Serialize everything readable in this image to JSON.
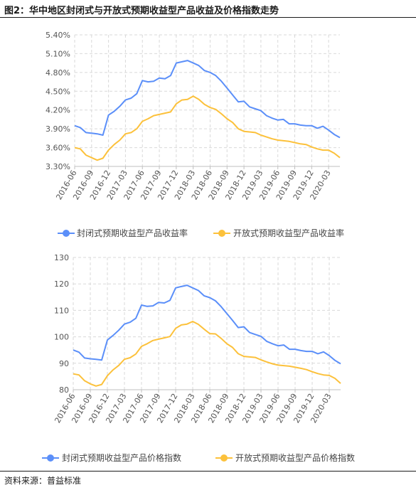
{
  "figure": {
    "title": "图2：华中地区封闭式与开放式预期收益型产品收益及价格指数走势",
    "source": "资料来源：普益标准"
  },
  "colors": {
    "closed": "#5b8ff9",
    "open": "#fcc13b",
    "grid": "#d9d9d9",
    "axis": "#bfbfbf",
    "text": "#555555"
  },
  "chart_data": [
    {
      "type": "line",
      "title": "",
      "xlabel": "",
      "ylabel": "",
      "ylim": [
        3.3,
        5.4
      ],
      "yticks": [
        "3.30%",
        "3.60%",
        "3.90%",
        "4.20%",
        "4.50%",
        "4.80%",
        "5.10%",
        "5.40%"
      ],
      "ytick_values": [
        3.3,
        3.6,
        3.9,
        4.2,
        4.5,
        4.8,
        5.1,
        5.4
      ],
      "grid": true,
      "legend_position": "bottom",
      "categories": [
        "2016-06",
        "2016-07",
        "2016-08",
        "2016-09",
        "2016-10",
        "2016-11",
        "2016-12",
        "2017-01",
        "2017-02",
        "2017-03",
        "2017-04",
        "2017-05",
        "2017-06",
        "2017-07",
        "2017-08",
        "2017-09",
        "2017-10",
        "2017-11",
        "2017-12",
        "2018-01",
        "2018-02",
        "2018-03",
        "2018-04",
        "2018-05",
        "2018-06",
        "2018-07",
        "2018-08",
        "2018-09",
        "2018-10",
        "2018-11",
        "2018-12",
        "2019-01",
        "2019-02",
        "2019-03",
        "2019-04",
        "2019-05",
        "2019-06",
        "2019-07",
        "2019-08",
        "2019-09",
        "2019-10",
        "2019-11",
        "2019-12",
        "2020-01",
        "2020-02",
        "2020-03",
        "2020-04",
        "2020-05"
      ],
      "tick_labels": [
        "2016-06",
        "2016-09",
        "2016-12",
        "2017-03",
        "2017-06",
        "2017-09",
        "2017-12",
        "2018-03",
        "2018-06",
        "2018-09",
        "2018-12",
        "2019-03",
        "2019-06",
        "2019-09",
        "2019-12",
        "2020-03"
      ],
      "series": [
        {
          "name": "封闭式预期收益型产品收益率",
          "color_key": "closed",
          "values": [
            3.95,
            3.92,
            3.84,
            3.83,
            3.82,
            3.8,
            4.12,
            4.18,
            4.26,
            4.36,
            4.39,
            4.46,
            4.67,
            4.65,
            4.66,
            4.71,
            4.7,
            4.75,
            4.95,
            4.97,
            4.99,
            4.95,
            4.91,
            4.83,
            4.8,
            4.75,
            4.66,
            4.55,
            4.44,
            4.33,
            4.34,
            4.25,
            4.22,
            4.19,
            4.11,
            4.07,
            4.04,
            4.05,
            3.98,
            3.98,
            3.96,
            3.95,
            3.95,
            3.91,
            3.94,
            3.88,
            3.81,
            3.76
          ]
        },
        {
          "name": "开放式预期收益型产品收益率",
          "color_key": "open",
          "values": [
            3.6,
            3.58,
            3.48,
            3.44,
            3.4,
            3.43,
            3.56,
            3.65,
            3.72,
            3.82,
            3.84,
            3.9,
            4.02,
            4.06,
            4.11,
            4.13,
            4.15,
            4.17,
            4.3,
            4.36,
            4.37,
            4.42,
            4.37,
            4.29,
            4.24,
            4.21,
            4.14,
            4.06,
            4.0,
            3.9,
            3.86,
            3.85,
            3.84,
            3.8,
            3.77,
            3.74,
            3.72,
            3.71,
            3.7,
            3.68,
            3.66,
            3.65,
            3.61,
            3.58,
            3.56,
            3.56,
            3.51,
            3.44
          ]
        }
      ]
    },
    {
      "type": "line",
      "title": "",
      "xlabel": "",
      "ylabel": "",
      "ylim": [
        80,
        130
      ],
      "yticks": [
        "80",
        "90",
        "100",
        "110",
        "120",
        "130"
      ],
      "ytick_values": [
        80,
        90,
        100,
        110,
        120,
        130
      ],
      "grid": true,
      "legend_position": "bottom",
      "categories": [
        "2016-06",
        "2016-07",
        "2016-08",
        "2016-09",
        "2016-10",
        "2016-11",
        "2016-12",
        "2017-01",
        "2017-02",
        "2017-03",
        "2017-04",
        "2017-05",
        "2017-06",
        "2017-07",
        "2017-08",
        "2017-09",
        "2017-10",
        "2017-11",
        "2017-12",
        "2018-01",
        "2018-02",
        "2018-03",
        "2018-04",
        "2018-05",
        "2018-06",
        "2018-07",
        "2018-08",
        "2018-09",
        "2018-10",
        "2018-11",
        "2018-12",
        "2019-01",
        "2019-02",
        "2019-03",
        "2019-04",
        "2019-05",
        "2019-06",
        "2019-07",
        "2019-08",
        "2019-09",
        "2019-10",
        "2019-11",
        "2019-12",
        "2020-01",
        "2020-02",
        "2020-03",
        "2020-04",
        "2020-05"
      ],
      "tick_labels": [
        "2016-06",
        "2016-09",
        "2016-12",
        "2017-03",
        "2017-06",
        "2017-09",
        "2017-12",
        "2018-03",
        "2018-06",
        "2018-09",
        "2018-12",
        "2019-03",
        "2019-06",
        "2019-09",
        "2019-12",
        "2020-03"
      ],
      "series": [
        {
          "name": "封闭式预期收益型产品价格指数",
          "color_key": "closed",
          "values": [
            95.0,
            94.2,
            92.0,
            91.7,
            91.5,
            91.2,
            98.8,
            100.5,
            102.5,
            104.8,
            105.5,
            107.0,
            112.0,
            111.5,
            111.7,
            113.0,
            112.8,
            113.8,
            118.5,
            119.0,
            119.5,
            118.5,
            117.5,
            115.5,
            114.8,
            113.6,
            111.4,
            108.8,
            106.2,
            103.5,
            103.8,
            101.6,
            100.9,
            100.2,
            98.3,
            97.4,
            96.6,
            96.9,
            95.3,
            95.3,
            94.8,
            94.5,
            94.5,
            93.6,
            94.3,
            92.9,
            91.1,
            89.8
          ]
        },
        {
          "name": "开放式预期收益型产品价格指数",
          "color_key": "open",
          "values": [
            86.0,
            85.6,
            83.4,
            82.2,
            81.4,
            82.0,
            85.3,
            87.5,
            89.2,
            91.5,
            92.1,
            93.5,
            96.4,
            97.4,
            98.6,
            99.1,
            99.6,
            100.1,
            103.2,
            104.5,
            104.8,
            105.8,
            104.7,
            102.9,
            101.2,
            101.1,
            99.4,
            97.4,
            96.0,
            93.6,
            92.6,
            92.4,
            92.2,
            91.3,
            90.5,
            89.8,
            89.3,
            89.1,
            88.9,
            88.5,
            88.1,
            87.6,
            86.8,
            86.1,
            85.6,
            85.4,
            84.3,
            82.4
          ]
        }
      ]
    }
  ]
}
